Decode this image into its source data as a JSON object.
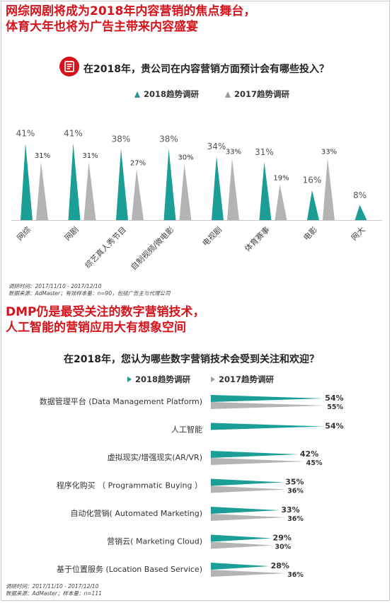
{
  "headline1": {
    "line1": "网综网剧将成为2018年内容营销的焦点舞台，",
    "line2": "体育大年也将为广告主带来内容盛宴"
  },
  "question1": "在2018年，贵公司在内容营销方面预计会有哪些投入？",
  "legend1": [
    "2018趋势调研",
    "2017趋势调研"
  ],
  "note1": {
    "line1": "调研时间：2017/11/10 - 2017/12/10",
    "line2": "数据来源：AdMaster；有效样本量：n=90，包括广告主与代理公司"
  },
  "headline2": {
    "line1": "DMP仍是最受关注的数字营销技术，",
    "line2": "人工智能的营销应用大有想象空间"
  },
  "question2": "在2018年，您认为哪些数字营销技术会受到关注和欢迎？",
  "legend2": [
    "2018趋势调研",
    "2017趋势调研"
  ],
  "note2": {
    "line1": "调研时间：2017/11/10 - 2017/12/10",
    "line2": "数据来源：AdMaster；样本量：n=111"
  },
  "colors": {
    "accent": "#d6131b",
    "series2018": "#1a9e96",
    "series2017": "#b4b4b4",
    "legend2018_marker": "#26958e",
    "legend2017_marker": "#9a9a9a"
  },
  "icons": {
    "badge": "document-icon"
  },
  "chart_data": [
    {
      "type": "bar",
      "orientation": "vertical",
      "categories": [
        "网综",
        "网剧",
        "综艺真人秀节目",
        "自制视频/微电影",
        "电视剧",
        "体育赛事",
        "电影",
        "网大"
      ],
      "series": [
        {
          "name": "2018趋势调研",
          "values": [
            41,
            41,
            38,
            38,
            34,
            31,
            16,
            8
          ],
          "labels": [
            "41%",
            "41%",
            "38%",
            "38%",
            "34%",
            "31%",
            "16%",
            "8%"
          ]
        },
        {
          "name": "2017趋势调研",
          "values": [
            31,
            31,
            27,
            30,
            33,
            19,
            33,
            null
          ],
          "labels": [
            "31%",
            "31%",
            "27%",
            "30%",
            "33%",
            "19%",
            "33%",
            ""
          ]
        }
      ],
      "ylim": [
        0,
        45
      ],
      "grid": false,
      "legend": "top-center"
    },
    {
      "type": "bar",
      "orientation": "horizontal",
      "categories": [
        "数据管理平台 (Data Management Platform)",
        "人工智能",
        "虚拟现实/增强现实(AR/VR)",
        "程序化购买 （ Programmatic Buying ）",
        "自动化营销( Automated Marketing)",
        "营销云( Marketing Cloud)",
        "基于位置服务 (Location Based Service)"
      ],
      "series": [
        {
          "name": "2018趋势调研",
          "values": [
            54,
            54,
            42,
            35,
            33,
            29,
            28
          ],
          "labels": [
            "54%",
            "54%",
            "42%",
            "35%",
            "33%",
            "29%",
            "28%"
          ]
        },
        {
          "name": "2017趋势调研",
          "values": [
            55,
            null,
            45,
            36,
            36,
            30,
            36
          ],
          "labels": [
            "55%",
            "",
            "45%",
            "36%",
            "36%",
            "30%",
            "36%"
          ]
        }
      ],
      "xlim": [
        0,
        60
      ],
      "grid": false,
      "legend": "top-center"
    }
  ]
}
